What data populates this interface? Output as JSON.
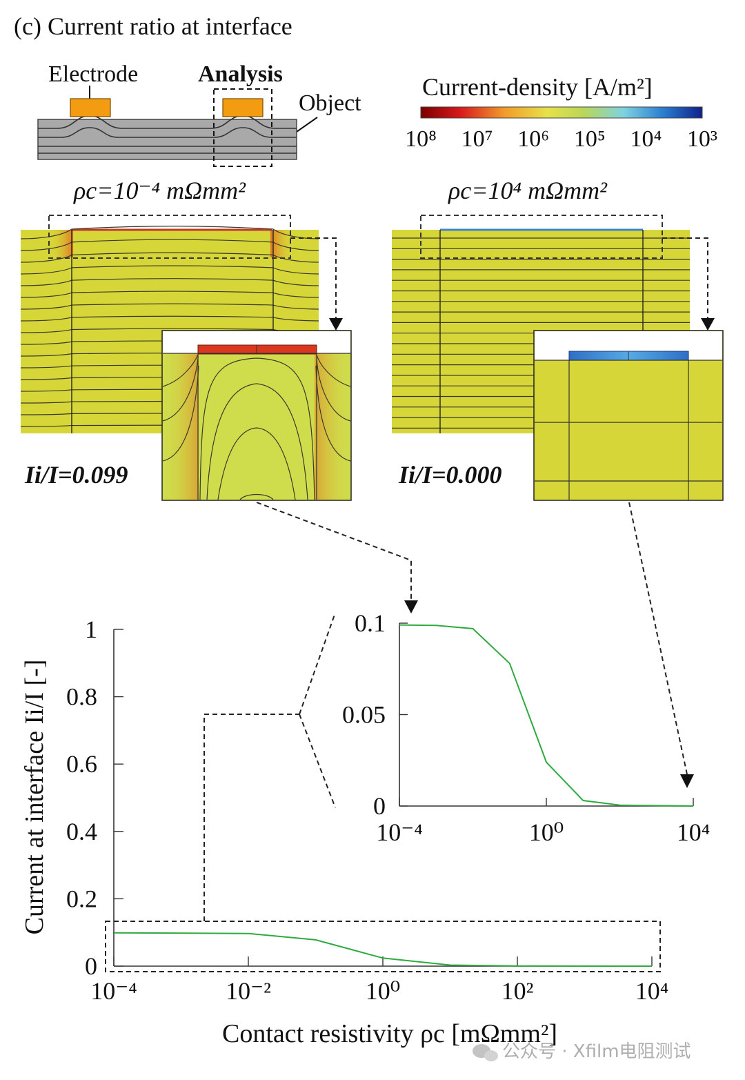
{
  "panel_title": "(c) Current ratio at interface",
  "schematic": {
    "electrode_label": "Electrode",
    "analysis_label": "Analysis",
    "object_label": "Object"
  },
  "colorbar": {
    "title": "Current-density [A/m²]",
    "ticks": [
      "10⁸",
      "10⁷",
      "10⁶",
      "10⁵",
      "10⁴",
      "10³"
    ],
    "colors": [
      "#7a0000",
      "#d7191c",
      "#f29d2c",
      "#e7e14a",
      "#b9d65a",
      "#7fd3e0",
      "#2a7fd0",
      "#10208a"
    ]
  },
  "sim_left": {
    "rho_label": "ρc=10⁻⁴ mΩmm²",
    "ratio_label": "Ii/I=0.099"
  },
  "sim_right": {
    "rho_label": "ρc=10⁴ mΩmm²",
    "ratio_label": "Ii/I=0.000"
  },
  "colors": {
    "field": "#d7d639",
    "field_inset": "#cfdc4c",
    "hot": "#e0431f",
    "cold": "#3f84d2",
    "electrode": "#f39c12",
    "object": "#a9a9a9",
    "curve": "#2eaa3f"
  },
  "chart_data": [
    {
      "type": "line",
      "title": "",
      "xlabel": "Contact resistivity ρc [mΩmm²]",
      "ylabel": "Current at interface Ii/I [-]",
      "xscale": "log",
      "xlim": [
        0.0001,
        10000
      ],
      "ylim": [
        0,
        1
      ],
      "xticks": [
        "10⁻⁴",
        "10⁻²",
        "10⁰",
        "10²",
        "10⁴"
      ],
      "yticks": [
        "0",
        "0.2",
        "0.4",
        "0.6",
        "0.8",
        "1"
      ],
      "series": [
        {
          "x": [
            0.0001,
            0.01,
            0.1,
            1,
            10,
            100,
            10000
          ],
          "y": [
            0.099,
            0.097,
            0.078,
            0.024,
            0.003,
            0.0005,
            0.0
          ]
        }
      ]
    },
    {
      "type": "line",
      "title": "",
      "xscale": "log",
      "xlim": [
        0.0001,
        10000
      ],
      "ylim": [
        0,
        0.1
      ],
      "xticks": [
        "10⁻⁴",
        "10⁰",
        "10⁴"
      ],
      "yticks": [
        "0",
        "0.05",
        "0.1"
      ],
      "series": [
        {
          "x": [
            0.0001,
            0.001,
            0.01,
            0.1,
            1,
            10,
            100,
            10000
          ],
          "y": [
            0.099,
            0.0988,
            0.097,
            0.078,
            0.024,
            0.003,
            0.0005,
            0.0
          ]
        }
      ]
    }
  ],
  "watermark": "公众号 · Xfilm电阻测试"
}
